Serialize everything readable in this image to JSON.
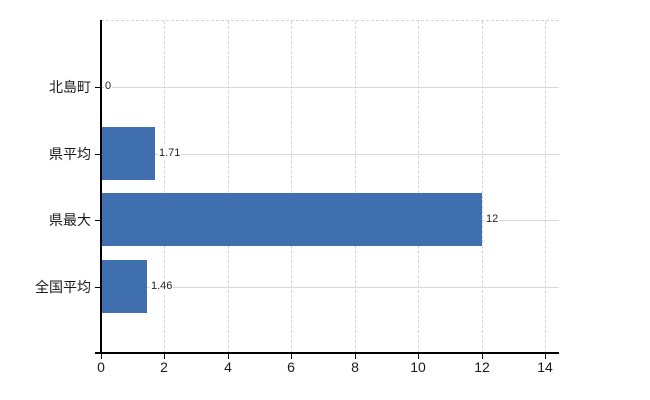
{
  "chart_data": {
    "type": "bar",
    "orientation": "horizontal",
    "title": "",
    "xlabel": "",
    "ylabel": "",
    "categories": [
      "北島町",
      "県平均",
      "県最大",
      "全国平均"
    ],
    "values": [
      0,
      1.71,
      12,
      1.46
    ],
    "value_labels": [
      "0",
      "1.71",
      "12",
      "1.46"
    ],
    "x_ticks": [
      0,
      2,
      4,
      6,
      8,
      10,
      12,
      14
    ],
    "xlim": [
      0,
      14.45
    ],
    "grid": true,
    "legend": false,
    "colors": {
      "bar": "#3f6fae",
      "axis": "#000000",
      "grid_horizontal": "#d3d9d3",
      "grid_vertical": "#d9d1d8",
      "text": "#1a1a1a",
      "background": "#ffffff"
    }
  }
}
